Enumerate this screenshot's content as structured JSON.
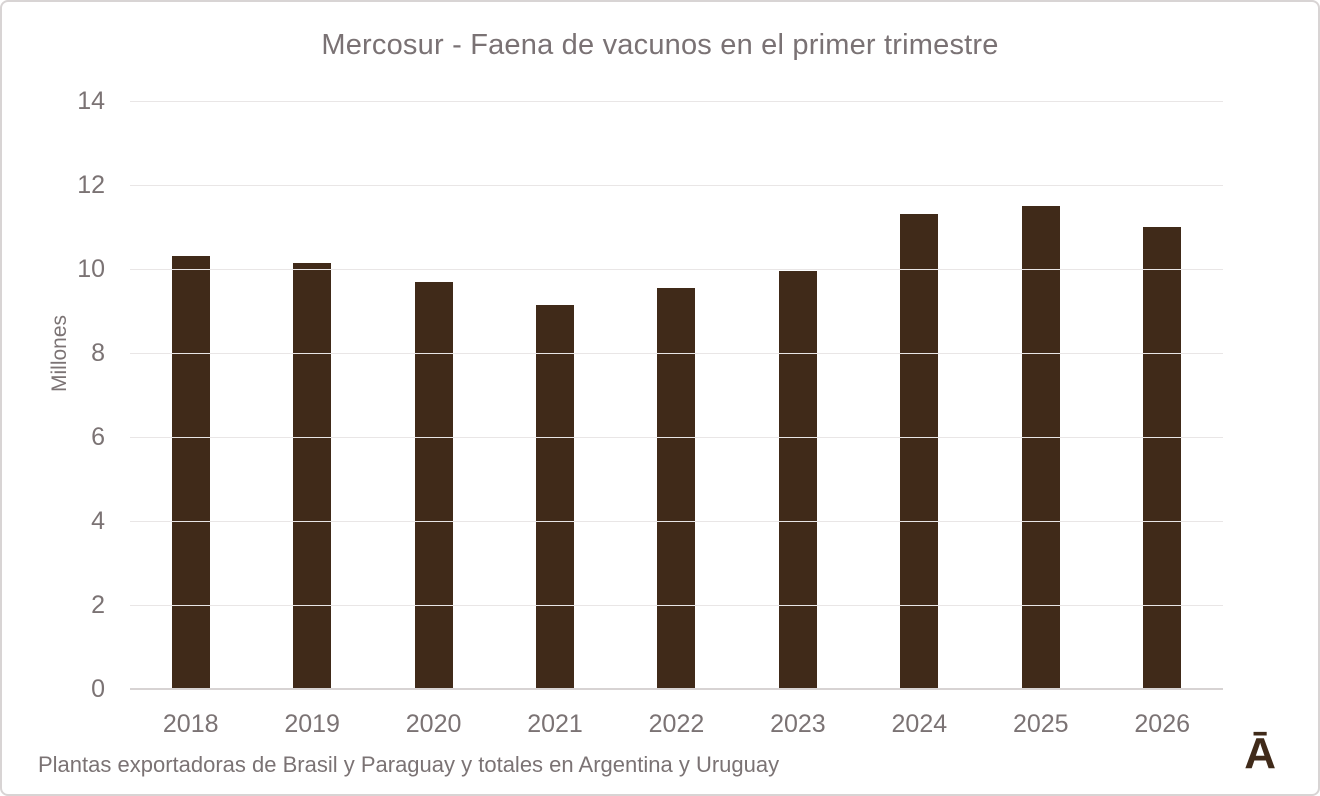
{
  "title": "Mercosur - Faena de vacunos en el primer trimestre",
  "footer": "Plantas exportadoras de Brasil y Paraguay y totales en Argentina y Uruguay",
  "logo_glyph": "Ā",
  "chart_data": {
    "type": "bar",
    "title": "Mercosur - Faena de vacunos en el primer trimestre",
    "categories": [
      "2018",
      "2019",
      "2020",
      "2021",
      "2022",
      "2023",
      "2024",
      "2025",
      "2026"
    ],
    "values": [
      10.3,
      10.15,
      9.7,
      9.15,
      9.55,
      9.95,
      11.3,
      11.5,
      11.0
    ],
    "xlabel": "",
    "ylabel": "Millones",
    "ylim": [
      0,
      14
    ],
    "yticks": [
      0,
      2,
      4,
      6,
      8,
      10,
      12,
      14
    ],
    "grid": true,
    "legend": "none",
    "annotation": "Plantas exportadoras de Brasil y Paraguay y totales en Argentina y Uruguay",
    "bar_color": "#402a19",
    "text_color": "#7b7374",
    "gridline_color": "#e9e6e6",
    "baseline_color": "#d7d3d3"
  }
}
